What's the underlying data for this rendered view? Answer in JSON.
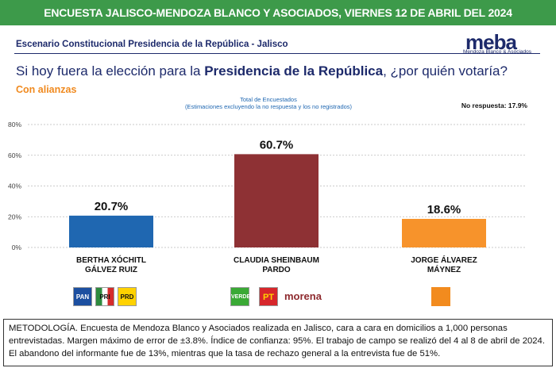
{
  "header": {
    "title": "ENCUESTA JALISCO-MENDOZA BLANCO Y ASOCIADOS, VIERNES 12 DE ABRIL DEL 2024"
  },
  "scenario": "Escenario Constitucional Presidencia de la República - Jalisco",
  "logo": {
    "name": "meba",
    "tagline": "Mendoza Blanco & Asociados"
  },
  "question": {
    "before": "Si hoy fuera la elección para la ",
    "emphasis": "Presidencia de la República",
    "after": ", ¿por quién votaría?"
  },
  "subtitle": "Con alianzas",
  "chart_data": {
    "type": "bar",
    "title": "Total de Encuestados",
    "subtitle": "(Estimaciones excluyendo la no respuesta y los no registrados)",
    "annotation": "No respuesta: 17.9%",
    "categories": [
      "BERTHA XÓCHITL GÁLVEZ RUIZ",
      "CLAUDIA SHEINBAUM PARDO",
      "JORGE ÁLVAREZ MÁYNEZ"
    ],
    "values": [
      20.7,
      60.7,
      18.6
    ],
    "value_labels": [
      "20.7%",
      "60.7%",
      "18.6%"
    ],
    "colors": [
      "#1f67b1",
      "#8e3134",
      "#f7932b"
    ],
    "ylim": [
      0,
      80
    ],
    "yticks": [
      {
        "value": 0,
        "label": "0%"
      },
      {
        "value": 20,
        "label": "20%"
      },
      {
        "value": 40,
        "label": "40%"
      },
      {
        "value": 60,
        "label": "60%"
      },
      {
        "value": 80,
        "label": "80%"
      }
    ],
    "grid": true
  },
  "parties": [
    [
      "PAN",
      "PRI",
      "PRD"
    ],
    [
      "VERDE",
      "PT",
      "morena"
    ]
  ],
  "methodology": "METODOLOGÍA. Encuesta de Mendoza Blanco y Asociados realizada en Jalisco, cara a cara en domicilios a 1,000 personas entrevistadas. Margen máximo de error de ±3.8%. Índice de confianza: 95%. El trabajo de campo se realizó del 4 al 8 de abril de 2024. El abandono del informante fue de 13%, mientras que la tasa de rechazo general a la entrevista fue de 51%."
}
